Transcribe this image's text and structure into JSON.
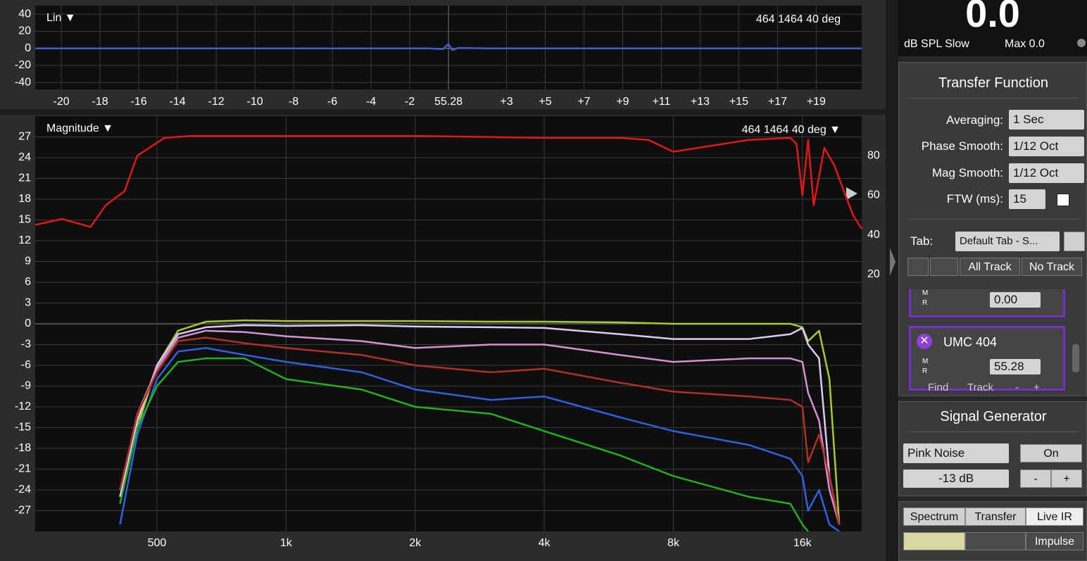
{
  "chart_data": [
    {
      "type": "line",
      "title": "Lin ▼",
      "annotation": "464 1464 40 deg",
      "delay": 55.28,
      "xlim": [
        -21.35,
        21.35
      ],
      "xticks": [
        -20,
        -18,
        -16,
        -14,
        -12,
        -10,
        -8,
        -6,
        -4,
        -2,
        {
          "value": 3,
          "label": "+3"
        },
        {
          "value": 5,
          "label": "+5"
        },
        {
          "value": 7,
          "label": "+7"
        },
        {
          "value": 9,
          "label": "+9"
        },
        {
          "value": 11,
          "label": "+11"
        },
        {
          "value": 13,
          "label": "+13"
        },
        {
          "value": 15,
          "label": "+15"
        },
        {
          "value": 17,
          "label": "+17"
        },
        {
          "value": 19,
          "label": "+19"
        }
      ],
      "ylim": [
        -48,
        50
      ],
      "yticks": [
        -40,
        -20,
        0,
        20,
        40
      ],
      "grid": true,
      "series": [
        {
          "color": "#3a5fd0",
          "x": [
            -21.35,
            -5,
            -1,
            -0.3,
            0,
            0.2,
            0.5,
            2,
            21.35
          ],
          "values": [
            0,
            0,
            0,
            -1,
            5,
            -2,
            0.5,
            0,
            0
          ]
        }
      ]
    },
    {
      "type": "line",
      "title": "Magnitude ▼",
      "annotation": "464 1464 40 deg ▼",
      "xscale": "log",
      "xlim": [
        260,
        22000
      ],
      "xticks": [
        500,
        {
          "value": 1000,
          "label": "1k"
        },
        {
          "value": 2000,
          "label": "2k"
        },
        {
          "value": 4000,
          "label": "4k"
        },
        {
          "value": 8000,
          "label": "8k"
        },
        {
          "value": 16000,
          "label": "16k"
        }
      ],
      "ylim": [
        -30,
        30
      ],
      "yticks": [
        -27,
        -24,
        -21,
        -18,
        -15,
        -12,
        -9,
        -6,
        -3,
        0,
        3,
        6,
        9,
        12,
        15,
        18,
        21,
        24,
        27
      ],
      "y2lim": [
        -110,
        100
      ],
      "y2ticks": [
        20,
        40,
        60,
        80
      ],
      "grid": true,
      "series": [
        {
          "color": "#e01818",
          "axis": "y2",
          "x": [
            260,
            300,
            350,
            380,
            420,
            450,
            480,
            520,
            600,
            1000,
            2000,
            4000,
            6000,
            7000,
            8000,
            12000,
            15000,
            15500,
            16000,
            16500,
            17000,
            18000,
            19000,
            20000,
            21000,
            22000
          ],
          "values": [
            45,
            48,
            44,
            55,
            62,
            80,
            84,
            89,
            90,
            90,
            90,
            89,
            89,
            88,
            82,
            88,
            89,
            86,
            60,
            88,
            55,
            84,
            75,
            62,
            50,
            43
          ]
        },
        {
          "color": "#a8c830",
          "x": [
            410,
            450,
            500,
            560,
            650,
            800,
            1000,
            1500,
            2000,
            3000,
            4000,
            6000,
            8000,
            12000,
            15000,
            16000,
            16500,
            17500,
            18500,
            19500
          ],
          "values": [
            -25,
            -15,
            -6,
            -1,
            0.3,
            0.5,
            0.4,
            0.4,
            0.4,
            0.3,
            0.3,
            0.2,
            0,
            0,
            0,
            -0.5,
            -2.5,
            -1,
            -8,
            -29
          ]
        },
        {
          "color": "#dccaf2",
          "x": [
            410,
            450,
            500,
            560,
            650,
            800,
            1000,
            1500,
            2000,
            3000,
            4000,
            6000,
            8000,
            12000,
            15000,
            16000,
            16500,
            17500,
            18500,
            19500
          ],
          "values": [
            -25,
            -14,
            -6,
            -1.5,
            -0.5,
            -0.2,
            -0.3,
            -0.2,
            -0.4,
            -0.5,
            -0.6,
            -1.5,
            -2.2,
            -2.2,
            -1.5,
            -0.6,
            -3,
            -5,
            -22,
            -29
          ]
        },
        {
          "color": "#d890d0",
          "x": [
            410,
            450,
            500,
            560,
            650,
            800,
            1000,
            1500,
            2000,
            3000,
            4000,
            6000,
            8000,
            12000,
            15000,
            16000,
            16500,
            17500,
            18500,
            19500
          ],
          "values": [
            -24,
            -13,
            -6.5,
            -2,
            -1,
            -1.2,
            -1.8,
            -2.5,
            -3.5,
            -3,
            -3,
            -4.5,
            -5.5,
            -5,
            -5,
            -5.5,
            -10,
            -14,
            -24,
            -29
          ]
        },
        {
          "color": "#b03028",
          "x": [
            410,
            450,
            500,
            560,
            650,
            800,
            1000,
            1500,
            2000,
            3000,
            4000,
            6000,
            8000,
            12000,
            15000,
            16000,
            16500,
            17500,
            18500,
            19500
          ],
          "values": [
            -24,
            -13,
            -7,
            -2.5,
            -2,
            -2.8,
            -3.5,
            -4.5,
            -6,
            -7,
            -6.5,
            -8.5,
            -9.8,
            -10.5,
            -11,
            -12,
            -20,
            -16,
            -22,
            -29
          ]
        },
        {
          "color": "#3060e0",
          "x": [
            410,
            450,
            500,
            560,
            650,
            800,
            1000,
            1500,
            2000,
            3000,
            4000,
            6000,
            8000,
            12000,
            15000,
            16000,
            16500,
            17500,
            18500,
            19500
          ],
          "values": [
            -29,
            -16,
            -8,
            -4,
            -3.5,
            -4.5,
            -5.5,
            -7,
            -9.5,
            -11,
            -10.5,
            -13.5,
            -15.5,
            -17.5,
            -19.5,
            -22,
            -27,
            -24,
            -29,
            -30
          ]
        },
        {
          "color": "#20b020",
          "x": [
            410,
            450,
            500,
            560,
            650,
            800,
            1000,
            1500,
            2000,
            3000,
            4000,
            6000,
            8000,
            12000,
            15000,
            16000,
            16500
          ],
          "values": [
            -26,
            -15,
            -9,
            -5.5,
            -5,
            -5,
            -8,
            -9.5,
            -12,
            -13,
            -15.5,
            -19,
            -22,
            -25,
            -26,
            -29,
            -30
          ]
        }
      ]
    }
  ],
  "meter": {
    "value": "0.0",
    "mode": "dB SPL Slow",
    "max": "Max 0.0"
  },
  "transfer_function": {
    "title": "Transfer Function",
    "averaging_label": "Averaging:",
    "averaging": "1 Sec",
    "phase_smooth_label": "Phase Smooth:",
    "phase_smooth": "1/12 Oct",
    "mag_smooth_label": "Mag Smooth:",
    "mag_smooth": "1/12 Oct",
    "ftw_label": "FTW (ms):",
    "ftw": "15",
    "tab_label": "Tab:",
    "tab": "Default Tab - S...",
    "all_track": "All Track",
    "no_track": "No Track"
  },
  "tracks": [
    {
      "m": "M",
      "r": "R",
      "delay": "0.00"
    },
    {
      "name": "UMC 404",
      "m": "M",
      "r": "R",
      "delay": "55.28",
      "find": "Find",
      "track": "Track",
      "minus": "-",
      "plus": "+"
    }
  ],
  "signal_generator": {
    "title": "Signal Generator",
    "signal": "Pink Noise",
    "on": "On",
    "level": "-13 dB",
    "minus": "-",
    "plus": "+"
  },
  "view_buttons": {
    "spectrum": "Spectrum",
    "transfer": "Transfer",
    "live_ir": "Live IR",
    "impulse": "Impulse"
  }
}
